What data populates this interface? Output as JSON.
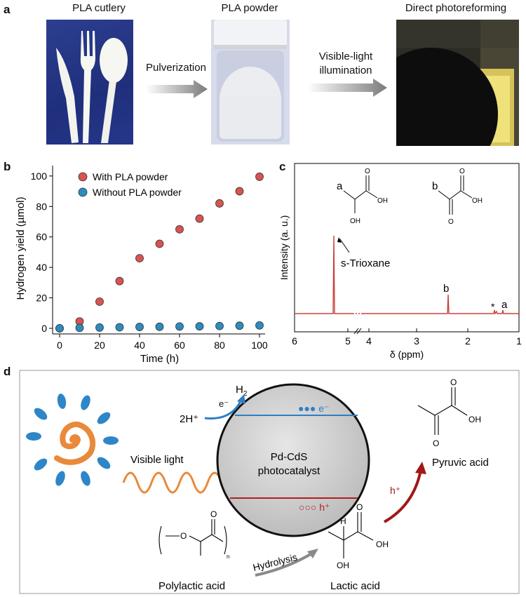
{
  "panel_a": {
    "letter": "a",
    "photo1_caption": "PLA cutlery",
    "photo2_caption": "PLA powder",
    "photo3_caption": "Direct photoreforming",
    "step1_label": "Pulverization",
    "step2_label_line1": "Visible-light",
    "step2_label_line2": "illumination"
  },
  "panel_b": {
    "letter": "b"
  },
  "panel_c": {
    "letter": "c",
    "ylabel": "Intensity (a. u.)",
    "xlabel": "δ (ppm)",
    "xticks": [
      "6",
      "5",
      "4",
      "3",
      "2",
      "1"
    ],
    "peak_annotation": "s-Trioxane",
    "peak_b_label": "b",
    "peak_a_label": "a",
    "star_label": "*",
    "mol_a_letter": "a",
    "mol_b_letter": "b",
    "atom_O": "O",
    "atom_OH": "OH"
  },
  "panel_d": {
    "letter": "d",
    "h2": "H",
    "h2_sub": "2",
    "two_h_plus": "2H⁺",
    "e_minus": "e⁻",
    "band_electrons": "●●● e⁻",
    "band_holes": "○○○ h⁺",
    "catalyst_line1": "Pd-CdS",
    "catalyst_line2": "photocatalyst",
    "visible_light": "Visible light",
    "pyruvic_acid": "Pyruvic acid",
    "h_plus": "h⁺",
    "hydrolysis": "Hydrolysis",
    "polylactic_acid": "Polylactic acid",
    "lactic_acid": "Lactic acid",
    "atom_O": "O",
    "atom_OH": "OH",
    "atom_H": "H",
    "subscript_n": "n"
  },
  "chart_data": [
    {
      "type": "scatter",
      "title": "",
      "xlabel": "Time (h)",
      "ylabel": "Hydrogen yield (µmol)",
      "xlim": [
        0,
        100
      ],
      "ylim": [
        0,
        105
      ],
      "xticks": [
        0,
        20,
        40,
        60,
        80,
        100
      ],
      "yticks": [
        0,
        20,
        40,
        60,
        80,
        100
      ],
      "legend_position": "top-left",
      "series": [
        {
          "name": "With PLA powder",
          "color": "#d9534f",
          "x": [
            0,
            10,
            20,
            30,
            40,
            50,
            60,
            70,
            80,
            90,
            100
          ],
          "y": [
            0,
            4.5,
            17.5,
            31,
            46,
            55.5,
            65,
            72,
            82,
            90,
            99.5
          ]
        },
        {
          "name": "Without PLA powder",
          "color": "#2b8cbe",
          "x": [
            0,
            10,
            20,
            30,
            40,
            50,
            60,
            70,
            80,
            90,
            100
          ],
          "y": [
            0,
            0.3,
            0.5,
            0.7,
            0.9,
            1.0,
            1.2,
            1.3,
            1.5,
            1.7,
            1.9
          ]
        }
      ]
    }
  ]
}
